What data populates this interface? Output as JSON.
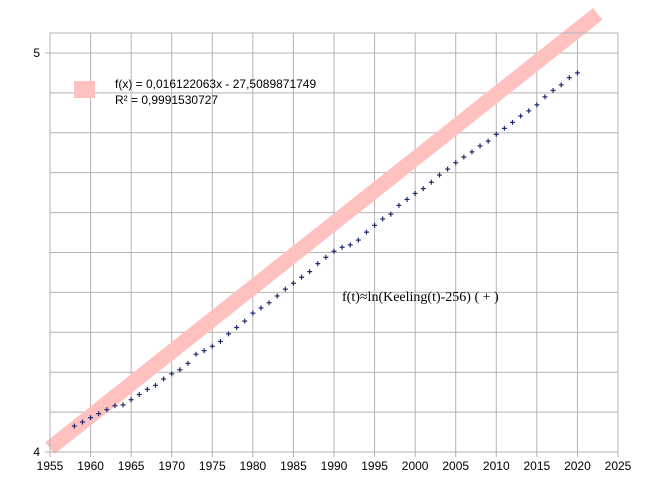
{
  "chart_data": {
    "type": "scatter",
    "title": "",
    "xlabel": "",
    "ylabel": "",
    "xlim": [
      1955,
      2025
    ],
    "ylim": [
      4,
      5.05
    ],
    "grid": true,
    "x_ticks": [
      "1955",
      "1960",
      "1965",
      "1970",
      "1975",
      "1980",
      "1985",
      "1990",
      "1995",
      "2000",
      "2005",
      "2010",
      "2015",
      "2020",
      "2025"
    ],
    "y_ticks": [
      {
        "value": 4,
        "label": "4"
      },
      {
        "value": 5,
        "label": "5"
      }
    ],
    "legend": {
      "placement": "top-left",
      "equation": "f(x) = 0,016122063x - 27,5089871749",
      "r_squared": "R² = 0,9991530727",
      "color": "#ffc0c0"
    },
    "annotation": "f(t)≈ln(Keeling(t)-256)  ( + )",
    "trendline": {
      "slope": 0.016122063,
      "intercept": -27.5089871749,
      "x_start": 1955,
      "x_end": 2022.5,
      "color": "#ffc0c0"
    },
    "series": [
      {
        "marker": "+",
        "color": "#1f2a6e",
        "x": [
          1958,
          1959,
          1960,
          1961,
          1962,
          1963,
          1964,
          1965,
          1966,
          1967,
          1968,
          1969,
          1970,
          1971,
          1972,
          1973,
          1974,
          1975,
          1976,
          1977,
          1978,
          1979,
          1980,
          1981,
          1982,
          1983,
          1984,
          1985,
          1986,
          1987,
          1988,
          1989,
          1990,
          1991,
          1992,
          1993,
          1994,
          1995,
          1996,
          1997,
          1998,
          1999,
          2000,
          2001,
          2002,
          2003,
          2004,
          2005,
          2006,
          2007,
          2008,
          2009,
          2010,
          2011,
          2012,
          2013,
          2014,
          2015,
          2016,
          2017,
          2018,
          2019,
          2020
        ],
        "y": [
          4.065,
          4.075,
          4.086,
          4.096,
          4.106,
          4.116,
          4.118,
          4.131,
          4.144,
          4.157,
          4.167,
          4.183,
          4.196,
          4.206,
          4.222,
          4.245,
          4.254,
          4.265,
          4.277,
          4.296,
          4.312,
          4.328,
          4.348,
          4.361,
          4.374,
          4.391,
          4.408,
          4.423,
          4.438,
          4.452,
          4.472,
          4.488,
          4.503,
          4.513,
          4.519,
          4.531,
          4.551,
          4.568,
          4.584,
          4.596,
          4.618,
          4.633,
          4.648,
          4.66,
          4.676,
          4.694,
          4.709,
          4.725,
          4.739,
          4.752,
          4.767,
          4.779,
          4.796,
          4.811,
          4.826,
          4.842,
          4.855,
          4.87,
          4.89,
          4.906,
          4.92,
          4.938,
          4.95
        ]
      }
    ]
  }
}
